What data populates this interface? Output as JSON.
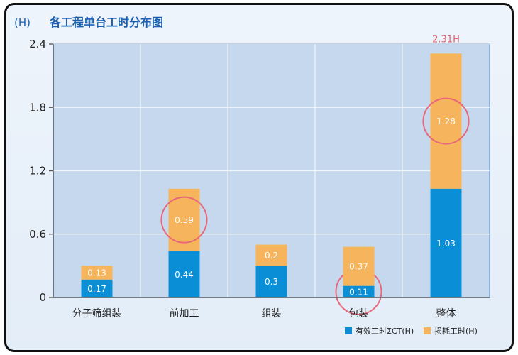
{
  "chart_data": {
    "type": "bar",
    "stacked": true,
    "unit_label": "(H)",
    "title": "各工程单台工时分布图",
    "categories": [
      "分子筛组装",
      "前加工",
      "组装",
      "包装",
      "整体"
    ],
    "series": [
      {
        "name": "有效工时ΣCT(H)",
        "color": "#0a8fd6",
        "values": [
          0.17,
          0.44,
          0.3,
          0.11,
          1.03
        ]
      },
      {
        "name": "损耗工时(H)",
        "color": "#f6b45c",
        "values": [
          0.13,
          0.59,
          0.2,
          0.37,
          1.28
        ]
      }
    ],
    "data_labels": [
      [
        "0.17",
        "0.44",
        "0.3",
        "0.11",
        "1.03"
      ],
      [
        "0.13",
        "0.59",
        "0.2",
        "0.37",
        "1.28"
      ]
    ],
    "annotations": [
      {
        "category": "整体",
        "text": "2.31H"
      }
    ],
    "highlighted": [
      {
        "series": 1,
        "category": 1
      },
      {
        "series": 0,
        "category": 3
      },
      {
        "series": 1,
        "category": 4
      }
    ],
    "yticks": [
      "0",
      "0.6",
      "1.2",
      "1.8",
      "2.4"
    ],
    "ylim": [
      0,
      2.4
    ],
    "grid": true,
    "legend_position": "bottom-right"
  }
}
